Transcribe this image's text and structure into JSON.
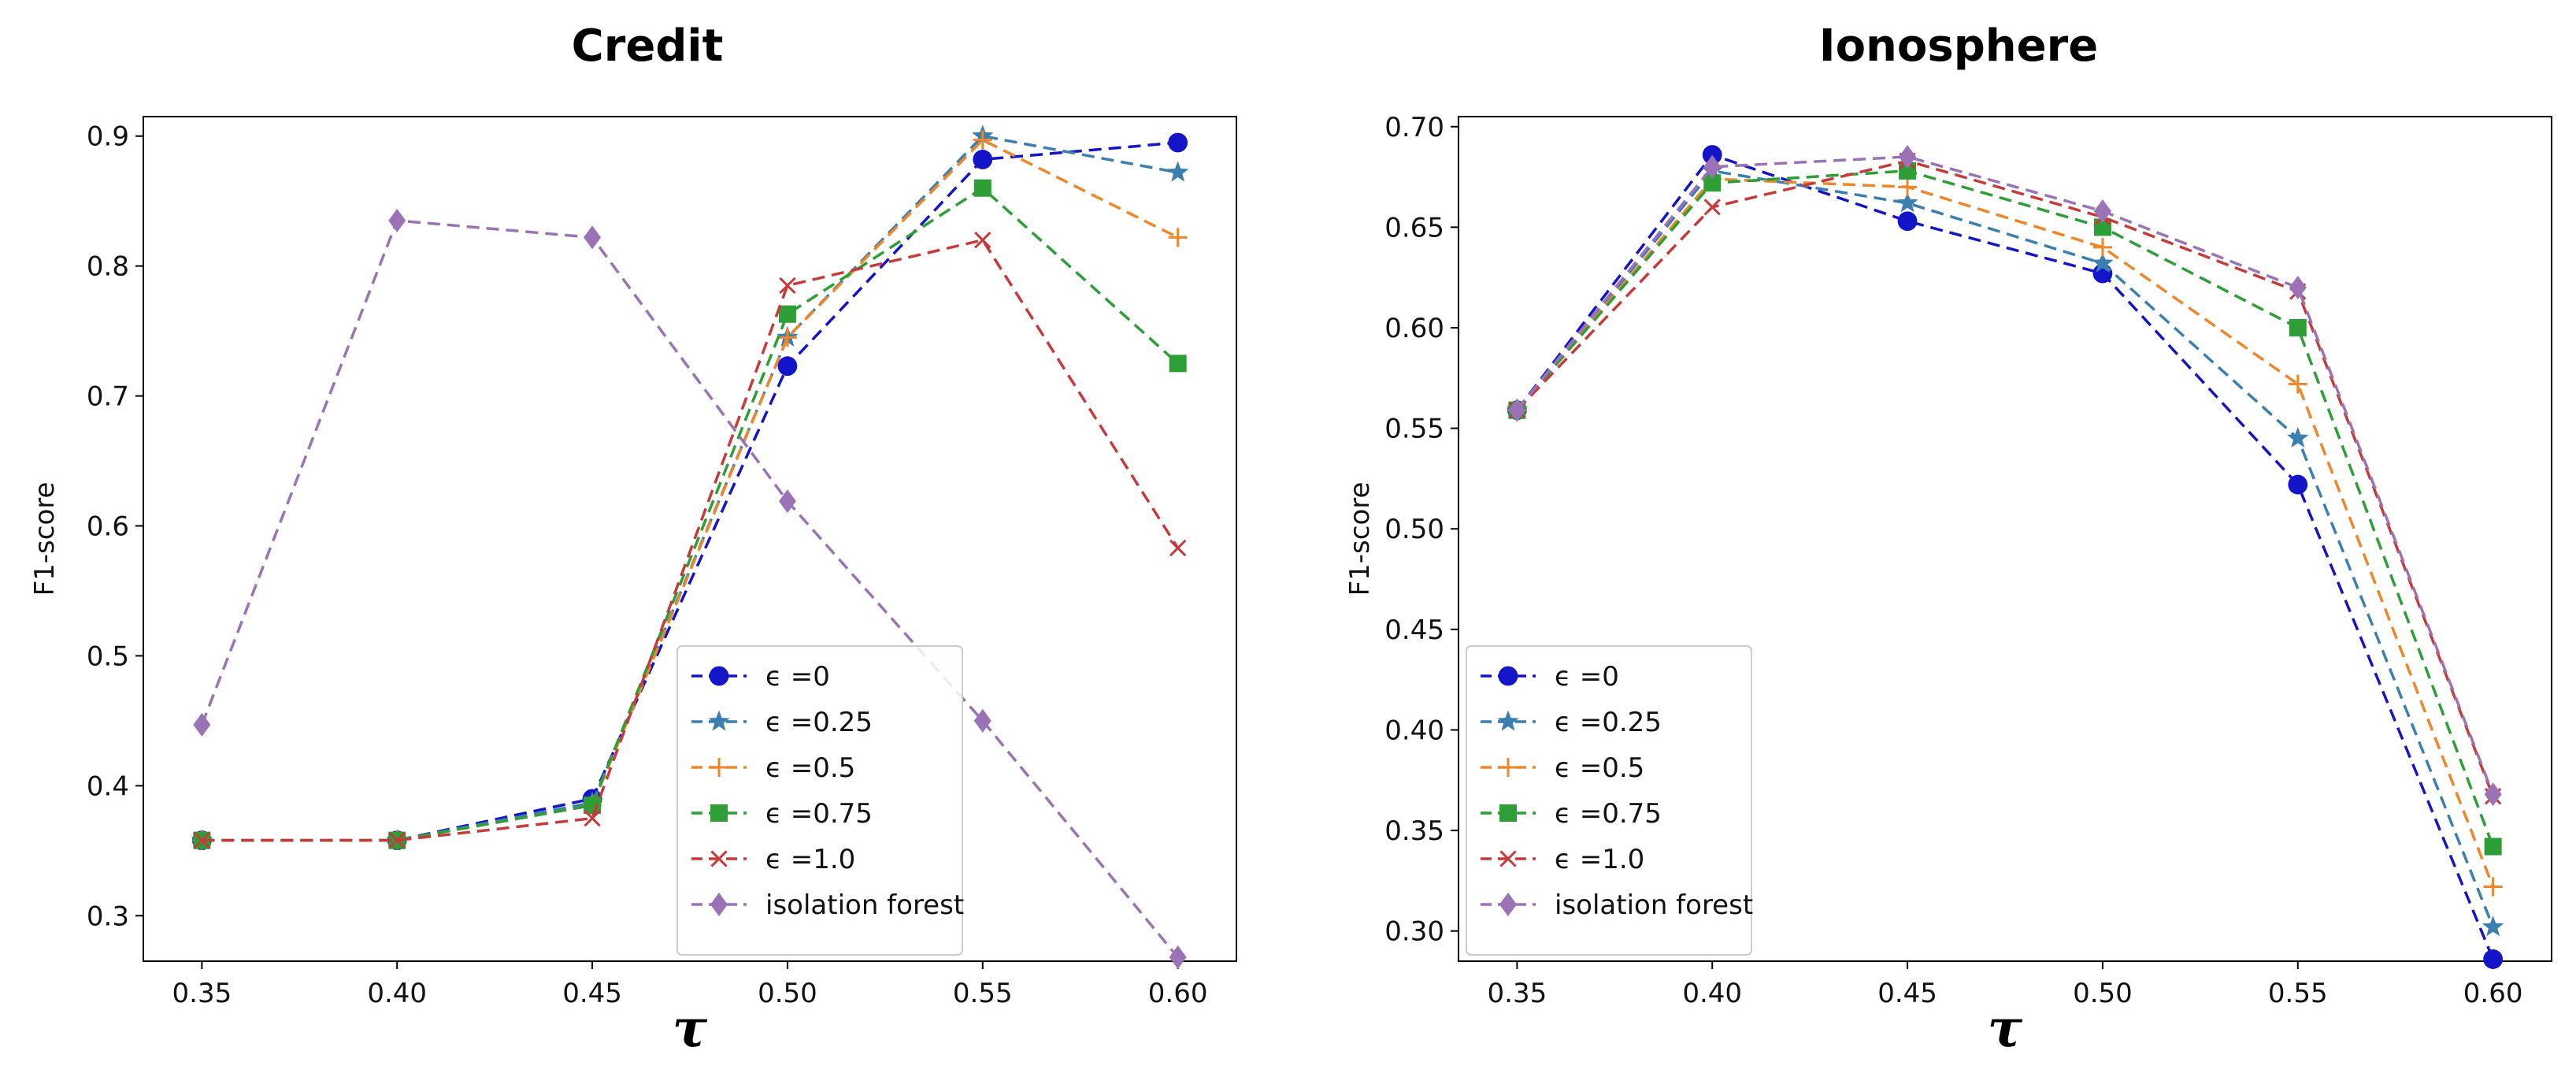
{
  "chart_data": [
    {
      "type": "line",
      "title": "Credit",
      "xlabel": "τ",
      "ylabel": "F1-score",
      "xlim": [
        0.335,
        0.615
      ],
      "ylim": [
        0.265,
        0.915
      ],
      "x": [
        0.35,
        0.4,
        0.45,
        0.5,
        0.55,
        0.6
      ],
      "x_tick_labels": [
        "0.35",
        "0.40",
        "0.45",
        "0.50",
        "0.55",
        "0.60"
      ],
      "y_ticks": [
        0.3,
        0.4,
        0.5,
        0.6,
        0.7,
        0.8,
        0.9
      ],
      "y_tick_labels": [
        "0.3",
        "0.4",
        "0.5",
        "0.6",
        "0.7",
        "0.8",
        "0.9"
      ],
      "legend_position": "lower-right",
      "series": [
        {
          "name": "ϵ =0",
          "eps_value": "=0",
          "color": "#1414c8",
          "marker": "circle",
          "values": [
            0.358,
            0.358,
            0.39,
            0.723,
            0.882,
            0.895
          ]
        },
        {
          "name": "ϵ =0.25",
          "eps_value": "=0.25",
          "color": "#3a7fb0",
          "marker": "star",
          "values": [
            0.358,
            0.358,
            0.387,
            0.745,
            0.9,
            0.872
          ]
        },
        {
          "name": "ϵ =0.5",
          "eps_value": "=0.5",
          "color": "#f0862a",
          "marker": "plus",
          "values": [
            0.358,
            0.358,
            0.385,
            0.745,
            0.897,
            0.822
          ]
        },
        {
          "name": "ϵ =0.75",
          "eps_value": "=0.75",
          "color": "#2e9e36",
          "marker": "square",
          "values": [
            0.358,
            0.358,
            0.385,
            0.763,
            0.86,
            0.725
          ]
        },
        {
          "name": "ϵ =1.0",
          "eps_value": "=1.0",
          "color": "#c63a3a",
          "marker": "x",
          "values": [
            0.358,
            0.358,
            0.375,
            0.785,
            0.82,
            0.583
          ]
        },
        {
          "name": "isolation forest",
          "eps_value": "",
          "color": "#9b72b6",
          "marker": "diamond",
          "values": [
            0.447,
            0.835,
            0.822,
            0.619,
            0.45,
            0.268
          ]
        }
      ]
    },
    {
      "type": "line",
      "title": "Ionosphere",
      "xlabel": "τ",
      "ylabel": "F1-score",
      "xlim": [
        0.335,
        0.615
      ],
      "ylim": [
        0.285,
        0.705
      ],
      "x": [
        0.35,
        0.4,
        0.45,
        0.5,
        0.55,
        0.6
      ],
      "x_tick_labels": [
        "0.35",
        "0.40",
        "0.45",
        "0.50",
        "0.55",
        "0.60"
      ],
      "y_ticks": [
        0.3,
        0.35,
        0.4,
        0.45,
        0.5,
        0.55,
        0.6,
        0.65,
        0.7
      ],
      "y_tick_labels": [
        "0.30",
        "0.35",
        "0.40",
        "0.45",
        "0.50",
        "0.55",
        "0.60",
        "0.65",
        "0.70"
      ],
      "legend_position": "lower-left",
      "series": [
        {
          "name": "ϵ =0",
          "eps_value": "=0",
          "color": "#1414c8",
          "marker": "circle",
          "values": [
            0.559,
            0.686,
            0.653,
            0.627,
            0.522,
            0.286
          ]
        },
        {
          "name": "ϵ =0.25",
          "eps_value": "=0.25",
          "color": "#3a7fb0",
          "marker": "star",
          "values": [
            0.559,
            0.678,
            0.662,
            0.632,
            0.545,
            0.302
          ]
        },
        {
          "name": "ϵ =0.5",
          "eps_value": "=0.5",
          "color": "#f0862a",
          "marker": "plus",
          "values": [
            0.559,
            0.674,
            0.67,
            0.64,
            0.572,
            0.322
          ]
        },
        {
          "name": "ϵ =0.75",
          "eps_value": "=0.75",
          "color": "#2e9e36",
          "marker": "square",
          "values": [
            0.559,
            0.672,
            0.678,
            0.65,
            0.6,
            0.342
          ]
        },
        {
          "name": "ϵ =1.0",
          "eps_value": "=1.0",
          "color": "#c63a3a",
          "marker": "x",
          "values": [
            0.559,
            0.66,
            0.683,
            0.655,
            0.618,
            0.367
          ]
        },
        {
          "name": "isolation forest",
          "eps_value": "",
          "color": "#9b72b6",
          "marker": "diamond",
          "values": [
            0.559,
            0.68,
            0.685,
            0.658,
            0.62,
            0.368
          ]
        }
      ]
    }
  ]
}
